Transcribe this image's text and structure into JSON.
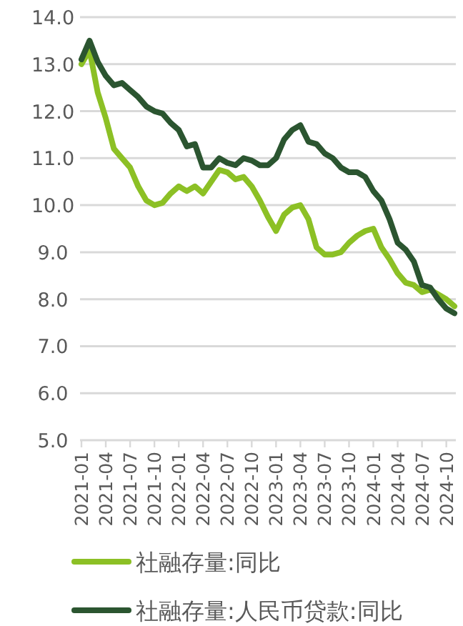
{
  "chart_data": {
    "type": "line",
    "categories": [
      "2021-01",
      null,
      null,
      "2021-04",
      null,
      null,
      "2021-07",
      null,
      null,
      "2021-10",
      null,
      null,
      "2022-01",
      null,
      null,
      "2022-04",
      null,
      null,
      "2022-07",
      null,
      null,
      "2022-10",
      null,
      null,
      "2023-01",
      null,
      null,
      "2023-04",
      null,
      null,
      "2023-07",
      null,
      null,
      "2023-10",
      null,
      null,
      "2024-01",
      null,
      null,
      "2024-04",
      null,
      null,
      "2024-07",
      null,
      null,
      "2024-10",
      null
    ],
    "series": [
      {
        "name": "社融存量:同比",
        "color": "#8cc025",
        "values": [
          13.0,
          13.3,
          12.4,
          11.85,
          11.2,
          11.0,
          10.8,
          10.4,
          10.1,
          10.0,
          10.05,
          10.25,
          10.4,
          10.3,
          10.4,
          10.25,
          10.5,
          10.75,
          10.7,
          10.55,
          10.6,
          10.4,
          10.1,
          9.75,
          9.45,
          9.8,
          9.95,
          10.0,
          9.7,
          9.1,
          8.95,
          8.95,
          9.0,
          9.2,
          9.35,
          9.45,
          9.5,
          9.1,
          8.85,
          8.55,
          8.35,
          8.3,
          8.15,
          8.2,
          8.1,
          8.0,
          7.85
        ]
      },
      {
        "name": "社融存量:人民币贷款:同比",
        "color": "#2b5530",
        "values": [
          13.1,
          13.5,
          13.05,
          12.75,
          12.55,
          12.6,
          12.45,
          12.3,
          12.1,
          12.0,
          11.95,
          11.75,
          11.6,
          11.25,
          11.3,
          10.8,
          10.8,
          11.0,
          10.9,
          10.85,
          11.0,
          10.95,
          10.85,
          10.85,
          11.0,
          11.4,
          11.6,
          11.7,
          11.35,
          11.3,
          11.1,
          11.0,
          10.8,
          10.7,
          10.7,
          10.6,
          10.3,
          10.1,
          9.7,
          9.2,
          9.05,
          8.8,
          8.3,
          8.25,
          8.0,
          7.8,
          7.7
        ]
      }
    ],
    "ylim": [
      5,
      14
    ],
    "yticks": [
      {
        "value": 5,
        "label": "5.0"
      },
      {
        "value": 6,
        "label": "6.0"
      },
      {
        "value": 7,
        "label": "7.0"
      },
      {
        "value": 8,
        "label": "8.0"
      },
      {
        "value": 9,
        "label": "9.0"
      },
      {
        "value": 10,
        "label": "10.0"
      },
      {
        "value": 11,
        "label": "11.0"
      },
      {
        "value": 12,
        "label": "12.0"
      },
      {
        "value": 13,
        "label": "13.0"
      },
      {
        "value": 14,
        "label": "14.0"
      }
    ],
    "grid": "y",
    "legend": "bottom",
    "marker": "none",
    "line_style": "solid"
  }
}
